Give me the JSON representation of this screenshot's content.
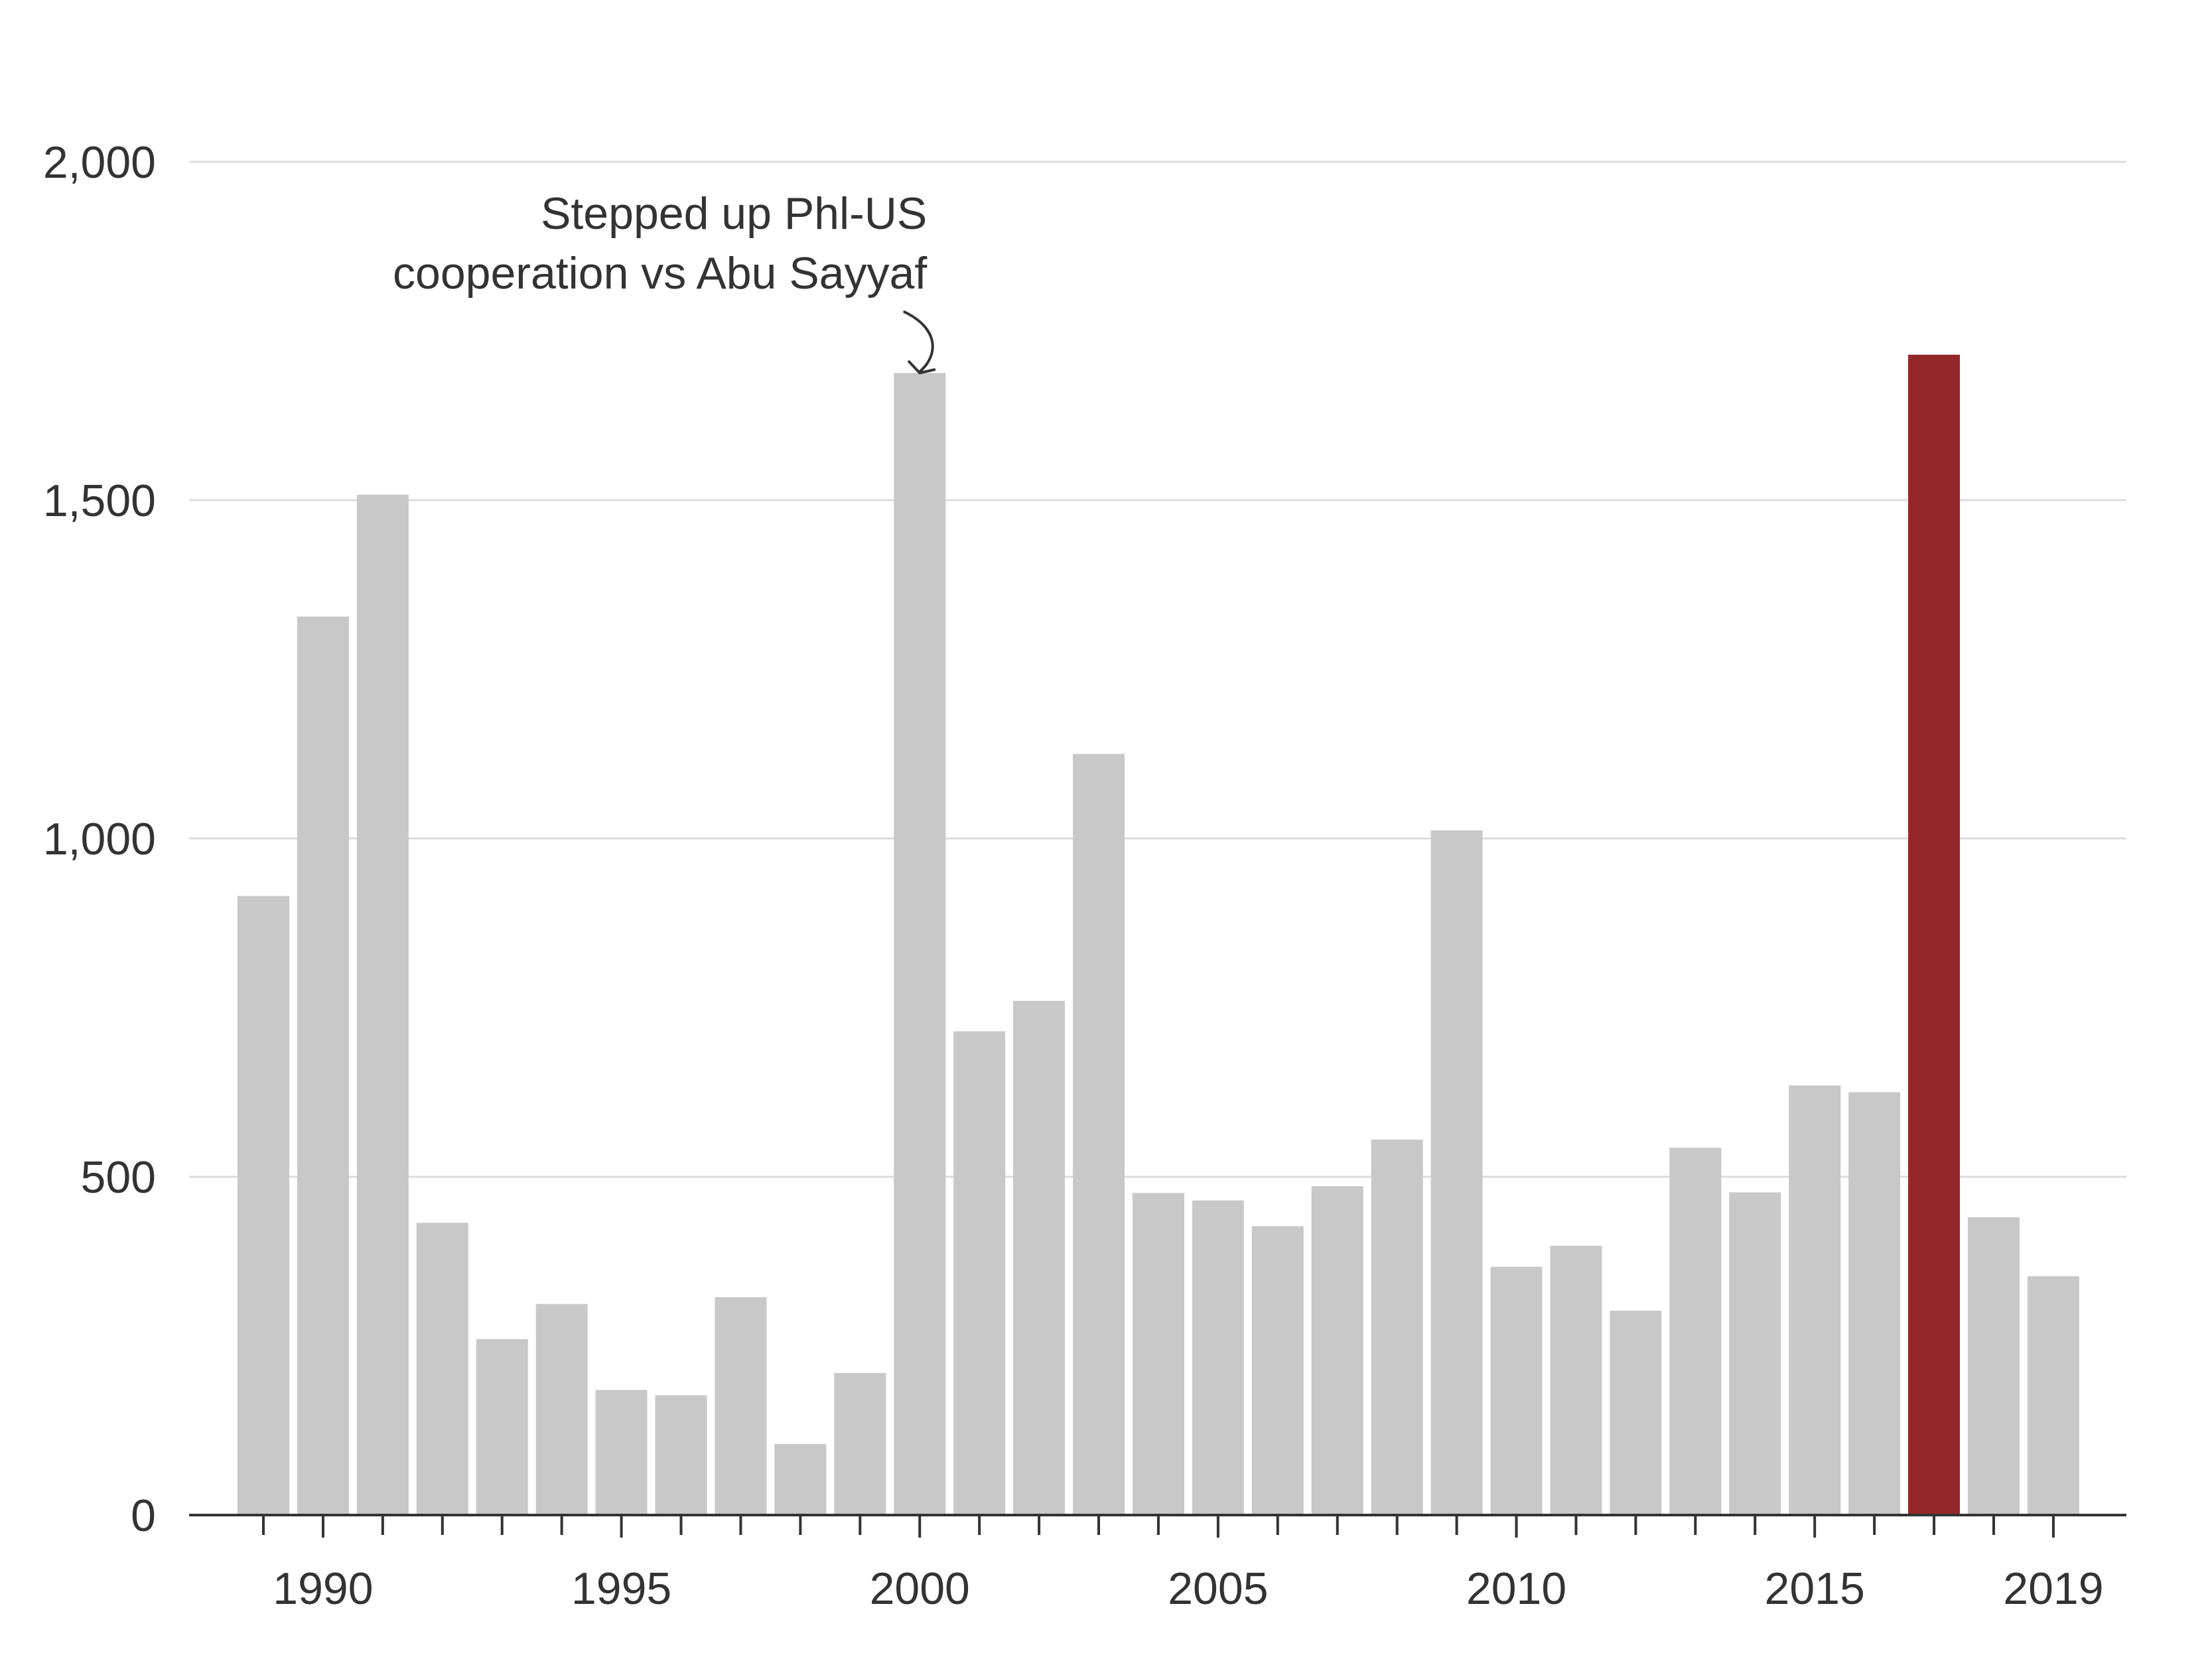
{
  "chart_data": {
    "type": "bar",
    "title": "",
    "xlabel": "",
    "ylabel": "",
    "x": [
      1989,
      1990,
      1991,
      1992,
      1993,
      1994,
      1995,
      1996,
      1997,
      1998,
      1999,
      2000,
      2001,
      2002,
      2003,
      2004,
      2005,
      2006,
      2007,
      2008,
      2009,
      2010,
      2011,
      2012,
      2013,
      2014,
      2015,
      2016,
      2017,
      2018,
      2019
    ],
    "values": [
      915,
      1328,
      1508,
      432,
      260,
      312,
      185,
      177,
      322,
      105,
      210,
      1688,
      715,
      760,
      1125,
      476,
      465,
      427,
      486,
      555,
      1012,
      367,
      398,
      302,
      543,
      477,
      635,
      625,
      1715,
      440,
      353
    ],
    "highlight_x": 2017,
    "colors": {
      "bar": "#c8c8c8",
      "highlight": "#94272a"
    },
    "ylim": [
      0,
      2000
    ],
    "y_ticks": [
      0,
      500,
      1000,
      1500,
      2000
    ],
    "y_tick_labels": [
      "0",
      "500",
      "1,000",
      "1,500",
      "2,000"
    ],
    "x_tick_labels": [
      {
        "x": 1990,
        "label": "1990"
      },
      {
        "x": 1995,
        "label": "1995"
      },
      {
        "x": 2000,
        "label": "2000"
      },
      {
        "x": 2005,
        "label": "2005"
      },
      {
        "x": 2010,
        "label": "2010"
      },
      {
        "x": 2015,
        "label": "2015"
      },
      {
        "x": 2019,
        "label": "2019"
      }
    ],
    "grid": true,
    "annotation": {
      "x": 2000,
      "lines": [
        "Stepped up Phl-US",
        "cooperation vs Abu Sayyaf"
      ]
    }
  }
}
